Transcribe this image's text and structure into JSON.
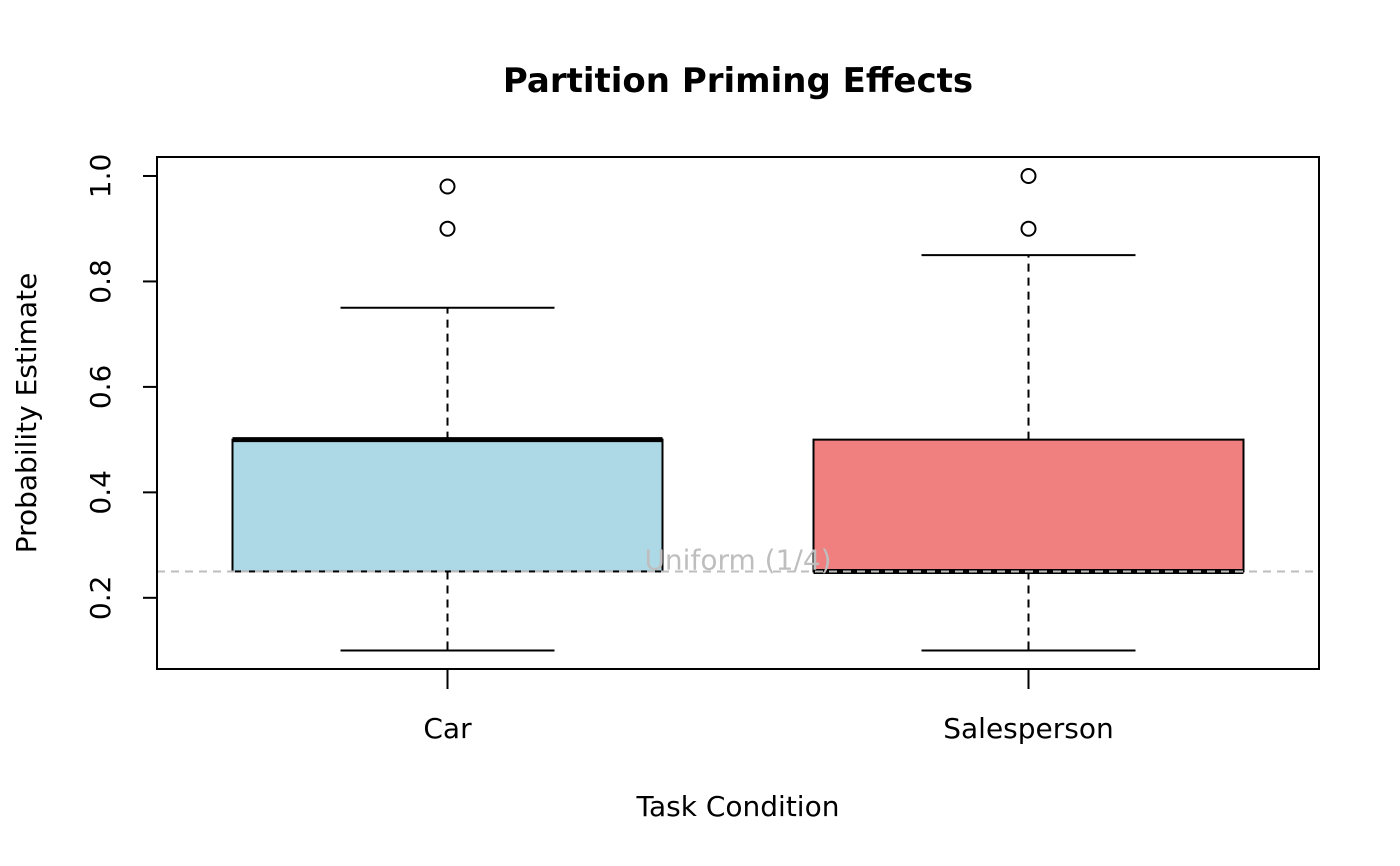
{
  "chart_data": {
    "type": "boxplot",
    "title": "Partition Priming Effects",
    "xlabel": "Task Condition",
    "ylabel": "Probability Estimate",
    "ylim": [
      0.065,
      1.036
    ],
    "yticks": [
      0.2,
      0.4,
      0.6,
      0.8,
      1.0
    ],
    "ytick_labels": [
      "0.2",
      "0.4",
      "0.6",
      "0.8",
      "1.0"
    ],
    "categories": [
      "Car",
      "Salesperson"
    ],
    "grid": false,
    "series": [
      {
        "name": "Car",
        "color": "#add8e6",
        "whisker_low": 0.1,
        "q1": 0.25,
        "median": 0.5,
        "q3": 0.5,
        "whisker_high": 0.75,
        "outliers": [
          0.9,
          0.98
        ]
      },
      {
        "name": "Salesperson",
        "color": "#f08080",
        "whisker_low": 0.1,
        "q1": 0.25,
        "median": 0.25,
        "q3": 0.5,
        "whisker_high": 0.85,
        "outliers": [
          0.9,
          1.0
        ]
      }
    ],
    "reference_line": {
      "value": 0.25,
      "label": "Uniform (1/4)",
      "color": "#bebebe",
      "style": "dashed"
    }
  }
}
